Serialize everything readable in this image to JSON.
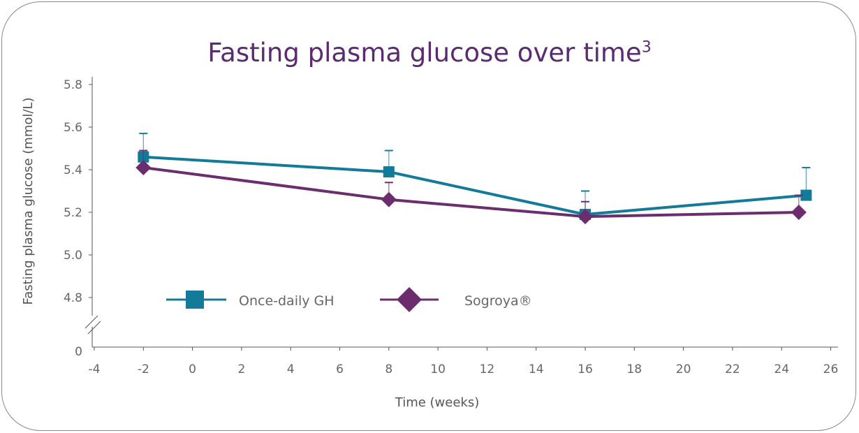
{
  "title": {
    "text": "Fasting plasma glucose over time",
    "superscript": "3"
  },
  "chart_data": {
    "type": "line",
    "title": "Fasting plasma glucose over time",
    "xlabel": "Time (weeks)",
    "ylabel": "Fasting plasma glucose (mmol/L)",
    "x_ticks": [
      "-4",
      "-2",
      "0",
      "2",
      "4",
      "6",
      "8",
      "10",
      "12",
      "14",
      "16",
      "18",
      "20",
      "22",
      "24",
      "26"
    ],
    "y_ticks": [
      "0",
      "4.8",
      "5.0",
      "5.2",
      "5.4",
      "5.6",
      "5.8"
    ],
    "xlim": [
      -4,
      26
    ],
    "ylim": [
      4.7,
      5.85
    ],
    "y_axis_break": true,
    "grid": false,
    "legend_position": "lower-left",
    "series": [
      {
        "name": "Once-daily GH",
        "color": "#147a99",
        "marker": "square",
        "x": [
          -2,
          8,
          16,
          25
        ],
        "y": [
          5.46,
          5.39,
          5.19,
          5.28
        ],
        "error_upper": [
          5.57,
          5.49,
          5.3,
          5.41
        ]
      },
      {
        "name": "Sogroya®",
        "color": "#6b2d6e",
        "marker": "diamond",
        "x": [
          -2,
          8,
          16,
          24.7
        ],
        "y": [
          5.41,
          5.26,
          5.18,
          5.2
        ],
        "error_upper": [
          5.49,
          5.34,
          5.25,
          5.28
        ]
      }
    ]
  }
}
